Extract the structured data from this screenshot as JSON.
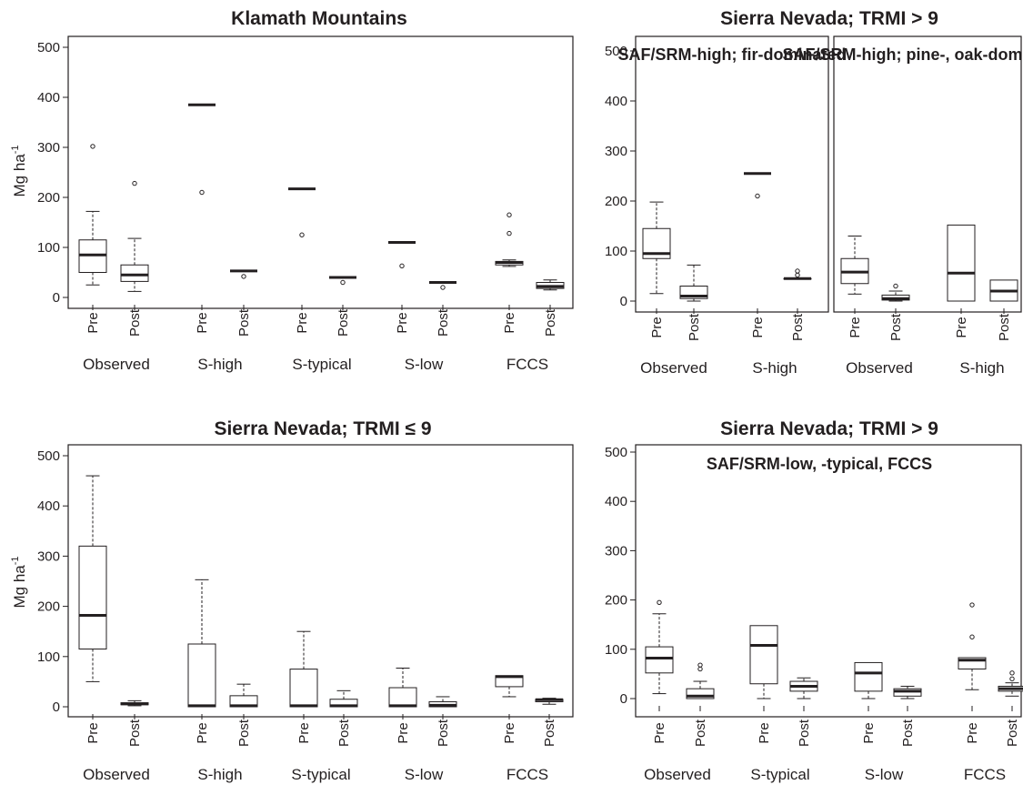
{
  "chart_data": [
    {
      "type": "box",
      "title": "Klamath Mountains",
      "ylabel": "Mg ha",
      "ylabel_sup": "-1",
      "ylim": [
        0,
        500
      ],
      "yticks": [
        0,
        100,
        200,
        300,
        400,
        500
      ],
      "boxes": [
        {
          "group": "Observed",
          "label": "Pre",
          "stats": [
            25,
            50,
            85,
            115,
            172
          ],
          "outliers": [
            302
          ]
        },
        {
          "group": "Observed",
          "label": "Post",
          "stats": [
            12,
            32,
            45,
            65,
            118
          ],
          "outliers": [
            228
          ]
        },
        {
          "group": "S-high",
          "label": "Pre",
          "stats": [
            385,
            385,
            385,
            385,
            385
          ],
          "outliers": [
            210
          ]
        },
        {
          "group": "S-high",
          "label": "Post",
          "stats": [
            53,
            53,
            53,
            53,
            53
          ],
          "outliers": [
            42
          ]
        },
        {
          "group": "S-typical",
          "label": "Pre",
          "stats": [
            217,
            217,
            217,
            217,
            217
          ],
          "outliers": [
            125
          ]
        },
        {
          "group": "S-typical",
          "label": "Post",
          "stats": [
            40,
            40,
            40,
            40,
            40
          ],
          "outliers": [
            30
          ]
        },
        {
          "group": "S-low",
          "label": "Pre",
          "stats": [
            110,
            110,
            110,
            110,
            110
          ],
          "outliers": [
            63
          ]
        },
        {
          "group": "S-low",
          "label": "Post",
          "stats": [
            30,
            30,
            30,
            30,
            30
          ],
          "outliers": [
            20
          ]
        },
        {
          "group": "FCCS",
          "label": "Pre",
          "stats": [
            62,
            65,
            70,
            72,
            75
          ],
          "outliers": [
            128,
            165
          ]
        },
        {
          "group": "FCCS",
          "label": "Post",
          "stats": [
            15,
            18,
            22,
            30,
            35
          ],
          "outliers": []
        }
      ]
    },
    {
      "type": "box",
      "title": "Sierra Nevada; TRMI > 9",
      "subtitle": "SAF/SRM-high; fir-dominated",
      "ylim": [
        0,
        500
      ],
      "yticks": [
        0,
        100,
        200,
        300,
        400,
        500
      ],
      "boxes": [
        {
          "group": "Observed",
          "label": "Pre",
          "stats": [
            15,
            85,
            95,
            145,
            198
          ],
          "outliers": []
        },
        {
          "group": "Observed",
          "label": "Post",
          "stats": [
            0,
            5,
            10,
            30,
            72
          ],
          "outliers": []
        },
        {
          "group": "S-high",
          "label": "Pre",
          "stats": [
            255,
            255,
            255,
            255,
            255
          ],
          "outliers": [
            210
          ]
        },
        {
          "group": "S-high",
          "label": "Post",
          "stats": [
            44,
            44,
            45,
            45,
            46
          ],
          "outliers": [
            52,
            60
          ]
        }
      ]
    },
    {
      "type": "box",
      "subtitle": "SAF/SRM-high; pine-, oak-dominated",
      "ylim": [
        0,
        500
      ],
      "boxes": [
        {
          "group": "Observed",
          "label": "Pre",
          "stats": [
            14,
            35,
            58,
            85,
            130
          ],
          "outliers": []
        },
        {
          "group": "Observed",
          "label": "Post",
          "stats": [
            0,
            2,
            5,
            12,
            20
          ],
          "outliers": [
            30
          ]
        },
        {
          "group": "S-high",
          "label": "Pre",
          "stats": [
            0,
            0,
            56,
            152,
            152
          ],
          "outliers": []
        },
        {
          "group": "S-high",
          "label": "Post",
          "stats": [
            0,
            0,
            20,
            42,
            42
          ],
          "outliers": []
        }
      ]
    },
    {
      "type": "box",
      "title": "Sierra Nevada; TRMI ≤ 9",
      "ylabel": "Mg ha",
      "ylabel_sup": "-1",
      "ylim": [
        0,
        500
      ],
      "yticks": [
        0,
        100,
        200,
        300,
        400,
        500
      ],
      "boxes": [
        {
          "group": "Observed",
          "label": "Pre",
          "stats": [
            50,
            115,
            182,
            320,
            460
          ],
          "outliers": []
        },
        {
          "group": "Observed",
          "label": "Post",
          "stats": [
            2,
            4,
            6,
            8,
            12
          ],
          "outliers": []
        },
        {
          "group": "S-high",
          "label": "Pre",
          "stats": [
            0,
            0,
            2,
            125,
            253
          ],
          "outliers": []
        },
        {
          "group": "S-high",
          "label": "Post",
          "stats": [
            0,
            0,
            2,
            22,
            45
          ],
          "outliers": []
        },
        {
          "group": "S-typical",
          "label": "Pre",
          "stats": [
            0,
            0,
            2,
            75,
            150
          ],
          "outliers": []
        },
        {
          "group": "S-typical",
          "label": "Post",
          "stats": [
            0,
            0,
            2,
            15,
            32
          ],
          "outliers": []
        },
        {
          "group": "S-low",
          "label": "Pre",
          "stats": [
            0,
            0,
            2,
            38,
            77
          ],
          "outliers": []
        },
        {
          "group": "S-low",
          "label": "Post",
          "stats": [
            0,
            0,
            3,
            10,
            20
          ],
          "outliers": []
        },
        {
          "group": "FCCS",
          "label": "Pre",
          "stats": [
            20,
            40,
            60,
            62,
            62
          ],
          "outliers": []
        },
        {
          "group": "FCCS",
          "label": "Post",
          "stats": [
            5,
            10,
            14,
            15,
            17
          ],
          "outliers": []
        }
      ]
    },
    {
      "type": "box",
      "title": "Sierra Nevada; TRMI > 9",
      "subtitle": "SAF/SRM-low, -typical, FCCS",
      "ylim": [
        0,
        500
      ],
      "yticks": [
        0,
        100,
        200,
        300,
        400,
        500
      ],
      "boxes": [
        {
          "group": "Observed",
          "label": "Pre",
          "stats": [
            10,
            52,
            82,
            105,
            172
          ],
          "outliers": [
            195
          ]
        },
        {
          "group": "Observed",
          "label": "Post",
          "stats": [
            0,
            0,
            5,
            20,
            35
          ],
          "outliers": [
            60,
            68
          ]
        },
        {
          "group": "S-typical",
          "label": "Pre",
          "stats": [
            0,
            30,
            108,
            148,
            148
          ],
          "outliers": []
        },
        {
          "group": "S-typical",
          "label": "Post",
          "stats": [
            0,
            15,
            25,
            35,
            42
          ],
          "outliers": []
        },
        {
          "group": "S-low",
          "label": "Pre",
          "stats": [
            0,
            15,
            52,
            73,
            73
          ],
          "outliers": []
        },
        {
          "group": "S-low",
          "label": "Post",
          "stats": [
            0,
            5,
            15,
            20,
            25
          ],
          "outliers": []
        },
        {
          "group": "FCCS",
          "label": "Pre",
          "stats": [
            18,
            60,
            78,
            83,
            83
          ],
          "outliers": [
            125,
            190
          ]
        },
        {
          "group": "FCCS",
          "label": "Post",
          "stats": [
            5,
            15,
            20,
            25,
            32
          ],
          "outliers": [
            40,
            52
          ]
        }
      ]
    }
  ]
}
